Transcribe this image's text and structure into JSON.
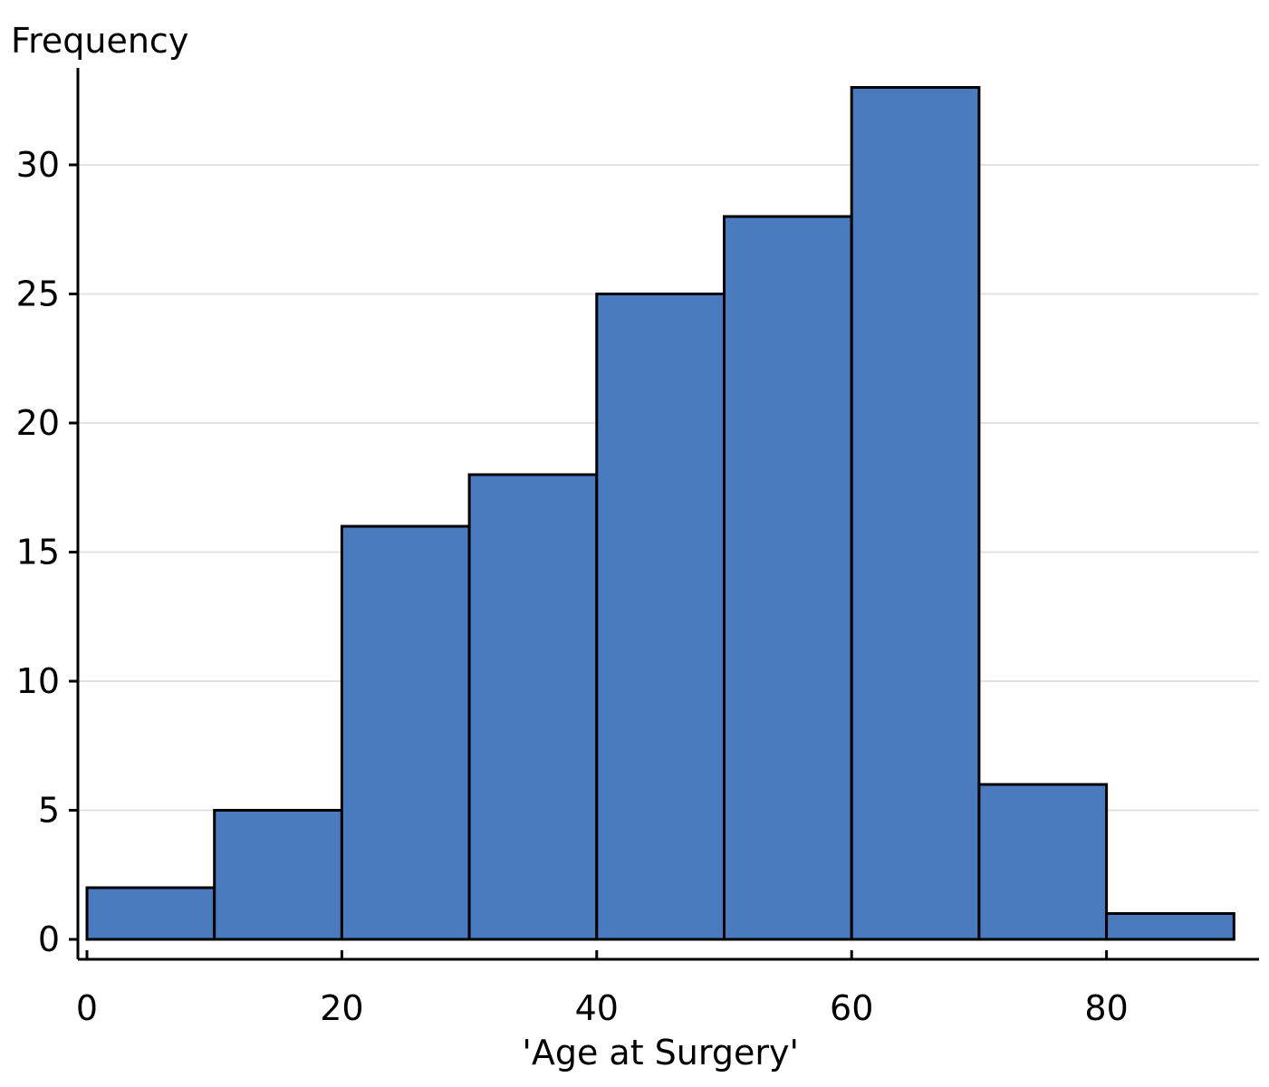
{
  "chart_data": {
    "type": "bar",
    "title": "",
    "ylabel": "Frequency",
    "xlabel": "'Age at Surgery'",
    "bins": [
      {
        "start": 0,
        "end": 10,
        "count": 2
      },
      {
        "start": 10,
        "end": 20,
        "count": 5
      },
      {
        "start": 20,
        "end": 30,
        "count": 16
      },
      {
        "start": 30,
        "end": 40,
        "count": 18
      },
      {
        "start": 40,
        "end": 50,
        "count": 25
      },
      {
        "start": 50,
        "end": 60,
        "count": 28
      },
      {
        "start": 60,
        "end": 70,
        "count": 33
      },
      {
        "start": 70,
        "end": 80,
        "count": 6
      },
      {
        "start": 80,
        "end": 90,
        "count": 1
      }
    ],
    "xlim": [
      0,
      90
    ],
    "ylim": [
      0,
      33
    ],
    "x_ticks": [
      0,
      20,
      40,
      60,
      80
    ],
    "y_ticks": [
      0,
      5,
      10,
      15,
      20,
      25,
      30
    ],
    "grid": true,
    "bar_color": "#4a7bbf",
    "edge_color": "#000000"
  }
}
